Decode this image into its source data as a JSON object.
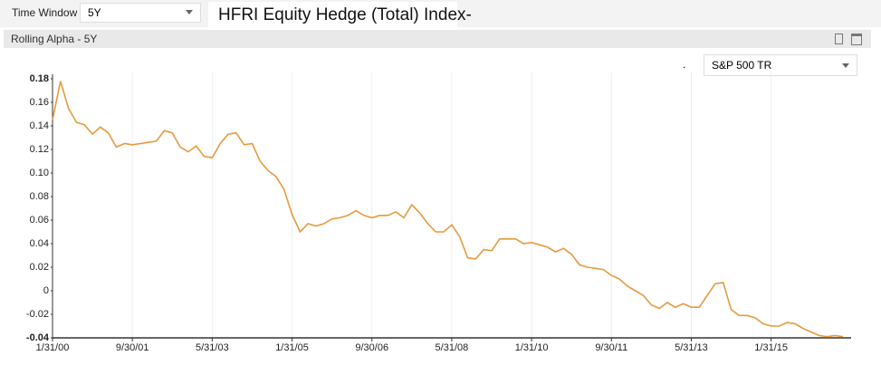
{
  "toolbar": {
    "time_window_label": "Time Window",
    "time_window_value": "5Y",
    "fund_title": "HFRI Equity Hedge (Total) Index-"
  },
  "panel": {
    "title": "Rolling Alpha - 5Y",
    "marker": ".",
    "benchmark": "S&P 500 TR"
  },
  "chart_data": {
    "type": "line",
    "categories": [
      "1/31/00",
      null,
      null,
      null,
      null,
      null,
      null,
      null,
      null,
      null,
      "9/30/01",
      null,
      null,
      null,
      null,
      null,
      null,
      null,
      null,
      null,
      "5/31/03",
      null,
      null,
      null,
      null,
      null,
      null,
      null,
      null,
      null,
      "1/31/05",
      null,
      null,
      null,
      null,
      null,
      null,
      null,
      null,
      null,
      "9/30/06",
      null,
      null,
      null,
      null,
      null,
      null,
      null,
      null,
      null,
      "5/31/08",
      null,
      null,
      null,
      null,
      null,
      null,
      null,
      null,
      null,
      "1/31/10",
      null,
      null,
      null,
      null,
      null,
      null,
      null,
      null,
      null,
      "9/30/11",
      null,
      null,
      null,
      null,
      null,
      null,
      null,
      null,
      null,
      "5/31/13",
      null,
      null,
      null,
      null,
      null,
      null,
      null,
      null,
      null,
      "1/31/15",
      null,
      null,
      null,
      null,
      null,
      null,
      null,
      null,
      null
    ],
    "values": [
      0.145,
      0.178,
      0.155,
      0.143,
      0.141,
      0.133,
      0.139,
      0.134,
      0.122,
      0.125,
      0.124,
      0.125,
      0.126,
      0.127,
      0.136,
      0.134,
      0.122,
      0.118,
      0.123,
      0.114,
      0.113,
      0.125,
      0.133,
      0.134,
      0.124,
      0.125,
      0.11,
      0.102,
      0.097,
      0.086,
      0.065,
      0.05,
      0.057,
      0.055,
      0.057,
      0.061,
      0.062,
      0.064,
      0.068,
      0.064,
      0.062,
      0.064,
      0.064,
      0.067,
      0.062,
      0.073,
      0.066,
      0.057,
      0.05,
      0.05,
      0.056,
      0.046,
      0.028,
      0.027,
      0.035,
      0.034,
      0.044,
      0.044,
      0.044,
      0.04,
      0.041,
      0.039,
      0.037,
      0.033,
      0.036,
      0.031,
      0.022,
      0.02,
      0.019,
      0.018,
      0.013,
      0.01,
      0.004,
      0.0,
      -0.004,
      -0.012,
      -0.015,
      -0.01,
      -0.014,
      -0.011,
      -0.014,
      -0.014,
      -0.004,
      0.006,
      0.007,
      -0.016,
      -0.021,
      -0.021,
      -0.023,
      -0.028,
      -0.03,
      -0.03,
      -0.027,
      -0.028,
      -0.032,
      -0.035,
      -0.038,
      -0.039,
      -0.038,
      -0.039
    ],
    "color": "#e69a3c",
    "ylim": [
      -0.04,
      0.18
    ],
    "yticks": [
      -0.04,
      -0.02,
      0,
      0.02,
      0.04,
      0.06,
      0.08,
      {
        "value": 0.1,
        "label": "0.10"
      },
      0.12,
      0.14,
      0.16,
      0.18
    ],
    "grid": true
  }
}
